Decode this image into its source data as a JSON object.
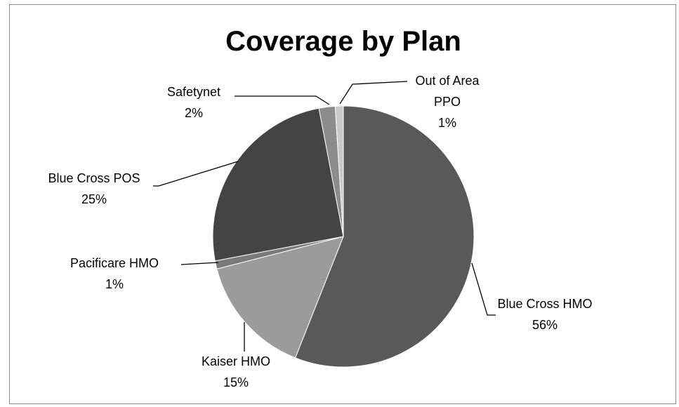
{
  "chart_data": {
    "type": "pie",
    "title": "Coverage by Plan",
    "colors": {
      "Blue Cross HMO": "#595959",
      "Kaiser HMO": "#9b9b9b",
      "Pacificare HMO": "#7a7a7a",
      "Blue Cross POS": "#444444",
      "Safetynet": "#8c8c8c",
      "Out of Area PPO": "#c9c9c9"
    },
    "slices": [
      {
        "label": "Blue Cross HMO",
        "value": 56,
        "value_text": "56%"
      },
      {
        "label": "Kaiser HMO",
        "value": 15,
        "value_text": "15%"
      },
      {
        "label": "Pacificare HMO",
        "value": 1,
        "value_text": "1%"
      },
      {
        "label": "Blue Cross POS",
        "value": 25,
        "value_text": "25%"
      },
      {
        "label": "Safetynet",
        "value": 2,
        "value_text": "2%"
      },
      {
        "label": "Out of Area PPO",
        "label_lines": [
          "Out of Area",
          "PPO"
        ],
        "value": 1,
        "value_text": "1%"
      }
    ]
  }
}
